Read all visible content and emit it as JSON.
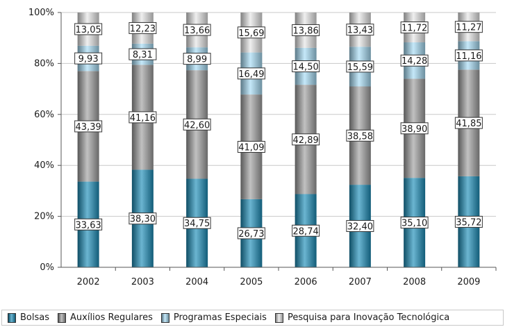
{
  "chart_data": {
    "type": "bar",
    "stacked": true,
    "categories": [
      "2002",
      "2003",
      "2004",
      "2005",
      "2006",
      "2007",
      "2008",
      "2009"
    ],
    "series": [
      {
        "name": "Bolsas",
        "color": "#1b8db8",
        "values": [
          33.63,
          38.3,
          34.75,
          26.73,
          28.74,
          32.4,
          35.1,
          35.72
        ]
      },
      {
        "name": "Auxílios Regulares",
        "color": "#a0a0a0",
        "values": [
          43.39,
          41.16,
          42.6,
          41.09,
          42.89,
          38.58,
          38.9,
          41.85
        ]
      },
      {
        "name": "Programas Especiais",
        "color": "#a6dcf5",
        "values": [
          9.93,
          8.31,
          8.99,
          16.49,
          14.5,
          15.59,
          14.28,
          11.16
        ]
      },
      {
        "name": "Pesquisa para Inovação Tecnológica",
        "color": "#e6e6e6",
        "values": [
          13.05,
          12.23,
          13.66,
          15.69,
          13.86,
          13.43,
          11.72,
          11.27
        ]
      }
    ],
    "y_ticks": [
      "0%",
      "20%",
      "40%",
      "60%",
      "80%",
      "100%"
    ],
    "ylim": [
      0,
      100
    ],
    "grid": true,
    "legend": "bottom"
  }
}
